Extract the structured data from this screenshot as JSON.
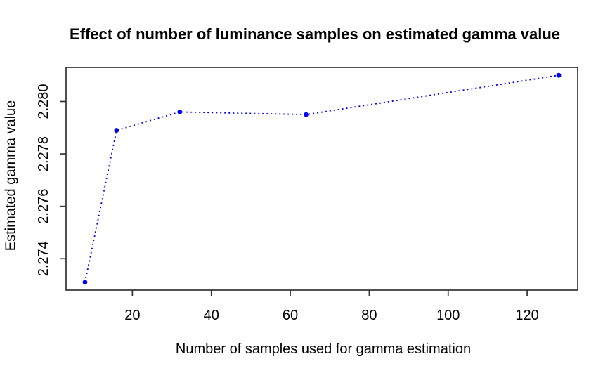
{
  "page": {
    "background_color": "#ffffff"
  },
  "chart_data": {
    "type": "line",
    "title": "Effect of number of luminance samples on estimated gamma value",
    "xlabel": "Number of samples used for gamma estimation",
    "ylabel": "Estimated gamma value",
    "x": [
      8,
      16,
      32,
      64,
      128
    ],
    "y": [
      2.2731,
      2.2789,
      2.2796,
      2.2795,
      2.281
    ],
    "xlim": [
      3.2,
      132.8
    ],
    "ylim": [
      2.2728,
      2.2813
    ],
    "x_ticks": [
      20,
      40,
      60,
      80,
      100,
      120
    ],
    "x_tick_labels": [
      "20",
      "40",
      "60",
      "80",
      "100",
      "120"
    ],
    "y_ticks": [
      2.274,
      2.276,
      2.278,
      2.28
    ],
    "y_tick_labels": [
      "2.274",
      "2.276",
      "2.278",
      "2.280"
    ],
    "line_style": "dotted",
    "marker": "filled-circle",
    "grid": false,
    "legend": "none",
    "colors": {
      "series": "#0000EE",
      "axis": "#333333",
      "text": "#000000"
    }
  }
}
